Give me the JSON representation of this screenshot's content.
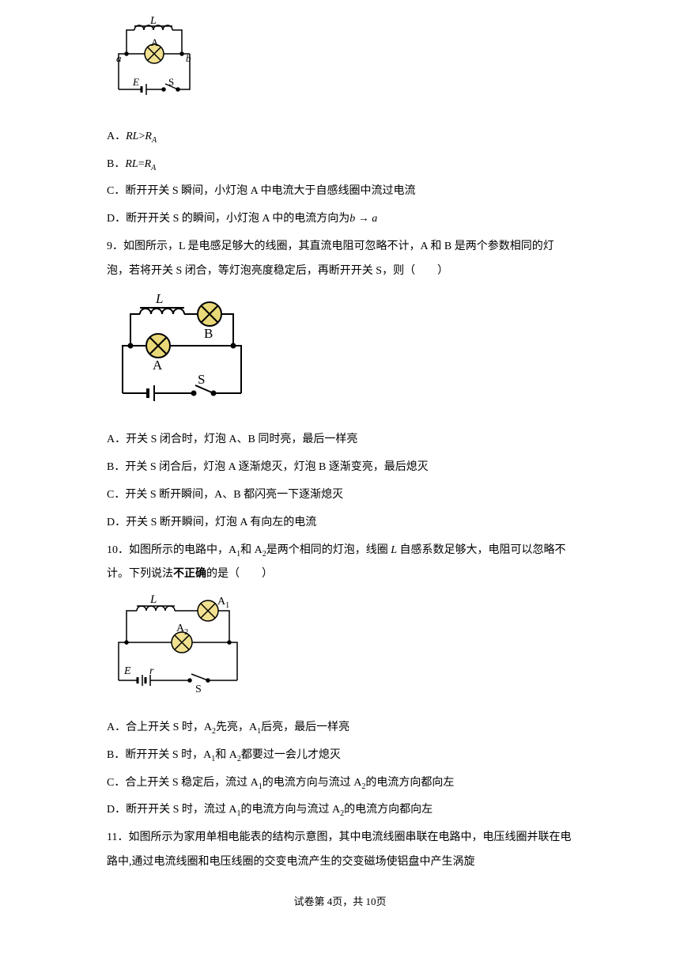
{
  "figure1": {
    "labels": {
      "L": "L",
      "A": "A",
      "a": "a",
      "b": "b",
      "E": "E",
      "S": "S"
    },
    "stroke": "#000000",
    "stroke_width": 1.5,
    "lamp_fill": "#f0e090"
  },
  "options8": {
    "A": {
      "marker": "A．",
      "text_html": "<span class='italic'>RL</span>><span class='italic'>R</span><span class='sub'>A</span>"
    },
    "B": {
      "marker": "B．",
      "text_html": "<span class='italic'>RL</span>=<span class='italic'>R</span><span class='sub'>A</span>"
    },
    "C": {
      "marker": "C．",
      "text": "断开开关 S 瞬间，小灯泡 A 中电流大于自感线圈中流过电流"
    },
    "D": {
      "marker": "D．",
      "text_html": "断开开关 S 的瞬间，小灯泡 A 中的电流方向为<span class='italic'>b</span> → <span class='italic'>a</span>"
    }
  },
  "q9": {
    "text": "9．如图所示，L 是电感足够大的线圈，其直流电阻可忽略不计，A 和 B 是两个参数相同的灯泡，若将开关 S 闭合，等灯泡亮度稳定后，再断开开关 S，则（　　）"
  },
  "figure2": {
    "labels": {
      "L": "L",
      "A": "A",
      "B": "B",
      "S": "S"
    },
    "stroke": "#000000",
    "stroke_width": 2,
    "lamp_fill": "#e8d878"
  },
  "options9": {
    "A": {
      "marker": "A．",
      "text": "开关 S 闭合时，灯泡 A、B 同时亮，最后一样亮"
    },
    "B": {
      "marker": "B．",
      "text": "开关 S 闭合后，灯泡 A 逐渐熄灭，灯泡 B 逐渐变亮，最后熄灭"
    },
    "C": {
      "marker": "C．",
      "text": "开关 S 断开瞬间，A、B 都闪亮一下逐渐熄灭"
    },
    "D": {
      "marker": "D．",
      "text": "开关 S 断开瞬间，灯泡 A 有向左的电流"
    }
  },
  "q10": {
    "text_html": "10．如图所示的电路中，A<span class='sub' style='font-style:normal'>1</span>和 A<span class='sub' style='font-style:normal'>2</span>是两个相同的灯泡，线圈 <span class='italic'>L</span> 自感系数足够大，电阻可以忽略不计。下列说法<span class='bold'>不正确</span>的是（　　）"
  },
  "figure3": {
    "labels": {
      "L": "L",
      "A1": "A",
      "A1sub": "1",
      "A2": "A",
      "A2sub": "2",
      "E": "E",
      "r": "r",
      "S": "S"
    },
    "stroke": "#000000",
    "stroke_width": 1.5,
    "lamp_fill": "#f0e090"
  },
  "options10": {
    "A": {
      "marker": "A．",
      "text_html": "合上开关 S 时，A<span class='sub' style='font-style:normal'>2</span>先亮，A<span class='sub' style='font-style:normal'>1</span>后亮，最后一样亮"
    },
    "B": {
      "marker": "B．",
      "text_html": "断开开关 S 时，A<span class='sub' style='font-style:normal'>1</span>和 A<span class='sub' style='font-style:normal'>2</span>都要过一会儿才熄灭"
    },
    "C": {
      "marker": "C．",
      "text_html": "合上开关 S 稳定后，流过 A<span class='sub' style='font-style:normal'>1</span>的电流方向与流过 A<span class='sub' style='font-style:normal'>2</span>的电流方向都向左"
    },
    "D": {
      "marker": "D．",
      "text_html": "断开开关 S 时，流过 A<span class='sub' style='font-style:normal'>1</span>的电流方向与流过 A<span class='sub' style='font-style:normal'>2</span>的电流方向都向左"
    }
  },
  "q11": {
    "text": "11．如图所示为家用单相电能表的结构示意图，其中电流线圈串联在电路中，电压线圈并联在电路中,通过电流线圈和电压线圈的交变电流产生的交变磁场使铝盘中产生涡旋"
  },
  "footer": {
    "text": "试卷第 4页，共 10页"
  }
}
